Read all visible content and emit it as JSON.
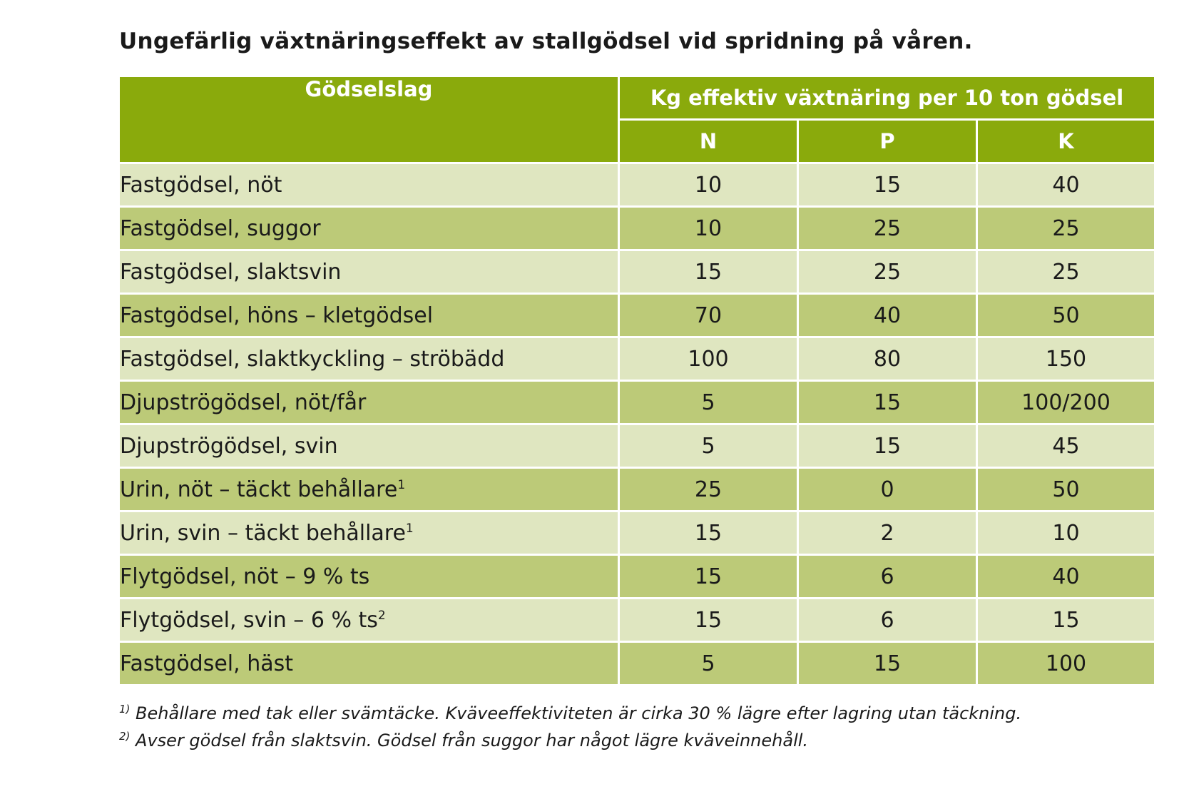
{
  "title": "Ungefärlig växtnäringseffekt av stallgödsel vid spridning på våren.",
  "table": {
    "header_type": "Gödselslag",
    "header_group": "Kg effektiv växtnäring per 10 ton gödsel",
    "header_n": "N",
    "header_p": "P",
    "header_k": "K",
    "rows": [
      {
        "type": "Fastgödsel, nöt",
        "note": "",
        "n": "10",
        "p": "15",
        "k": "40"
      },
      {
        "type": "Fastgödsel, suggor",
        "note": "",
        "n": "10",
        "p": "25",
        "k": "25"
      },
      {
        "type": "Fastgödsel, slaktsvin",
        "note": "",
        "n": "15",
        "p": "25",
        "k": "25"
      },
      {
        "type": "Fastgödsel, höns – kletgödsel",
        "note": "",
        "n": "70",
        "p": "40",
        "k": "50"
      },
      {
        "type": "Fastgödsel, slaktkyckling – ströbädd",
        "note": "",
        "n": "100",
        "p": "80",
        "k": "150"
      },
      {
        "type": "Djupströgödsel, nöt/får",
        "note": "",
        "n": "5",
        "p": "15",
        "k": "100/200"
      },
      {
        "type": "Djupströgödsel, svin",
        "note": "",
        "n": "5",
        "p": "15",
        "k": "45"
      },
      {
        "type": "Urin, nöt – täckt behållare",
        "note": "1",
        "n": "25",
        "p": "0",
        "k": "50"
      },
      {
        "type": "Urin, svin – täckt behållare",
        "note": "1",
        "n": "15",
        "p": "2",
        "k": "10"
      },
      {
        "type": "Flytgödsel, nöt – 9 % ts",
        "note": "",
        "n": "15",
        "p": "6",
        "k": "40"
      },
      {
        "type": "Flytgödsel, svin – 6 % ts",
        "note": "2",
        "n": "15",
        "p": "6",
        "k": "15"
      },
      {
        "type": "Fastgödsel, häst",
        "note": "",
        "n": "5",
        "p": "15",
        "k": "100"
      }
    ]
  },
  "footnotes": [
    {
      "marker": "1)",
      "text": "Behållare med tak eller svämtäcke. Kväveeffektiviteten är cirka 30 % lägre efter lagring utan täckning."
    },
    {
      "marker": "2)",
      "text": "Avser gödsel från slaktsvin. Gödsel från suggor har något lägre kväveinnehåll."
    }
  ],
  "colors": {
    "header_bg": "#8aaa0c",
    "row_light": "#dfe6c0",
    "row_dark": "#bcca78",
    "header_text": "#ffffff"
  }
}
